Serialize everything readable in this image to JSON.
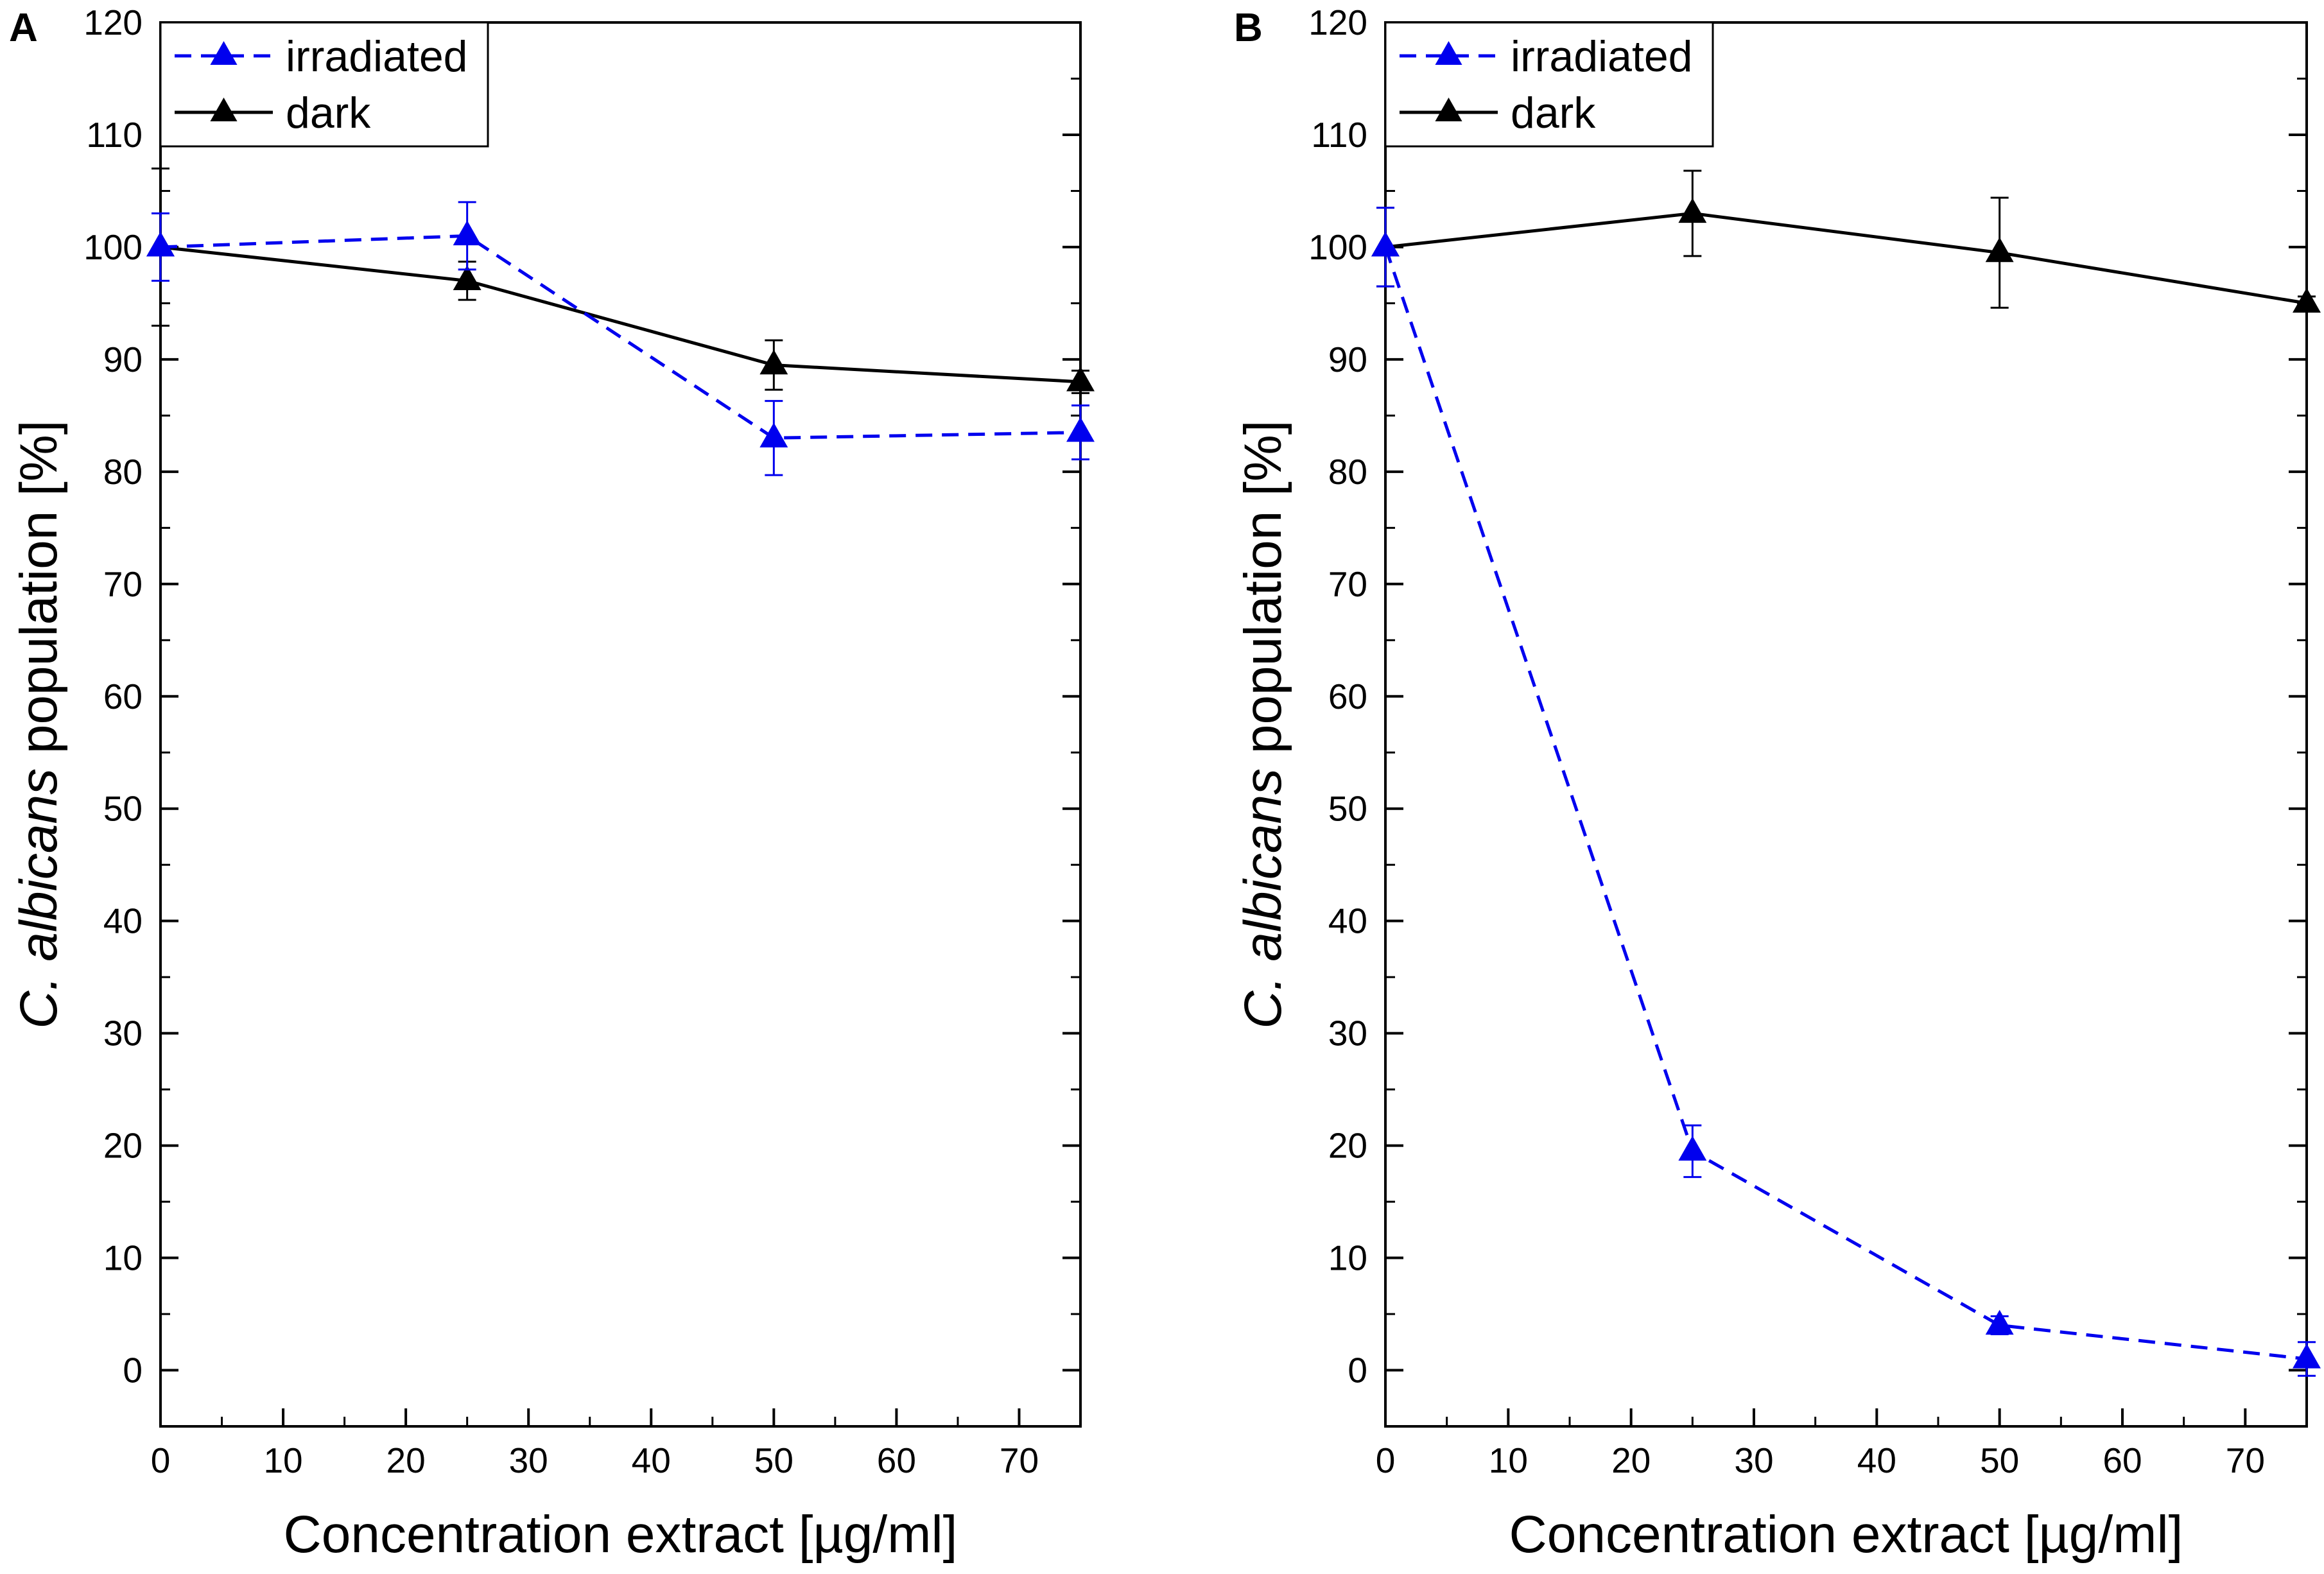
{
  "chart_data": [
    {
      "type": "line",
      "panel_label": "A",
      "xlabel": "Concentration extract [µg/ml]",
      "ylabel_italic": "C. albicans",
      "ylabel_rest": " population [%]",
      "xlim": [
        0,
        75
      ],
      "ylim": [
        -5,
        120
      ],
      "xticks": [
        0,
        10,
        20,
        30,
        40,
        50,
        60,
        70
      ],
      "yticks": [
        0,
        10,
        20,
        30,
        40,
        50,
        60,
        70,
        80,
        90,
        100,
        110,
        120
      ],
      "legend_position": "top-left",
      "series": [
        {
          "name": "irradiated",
          "color": "#0000ee",
          "dashed": true,
          "x": [
            0,
            25,
            50,
            75
          ],
          "y": [
            100,
            101,
            83,
            83.5
          ],
          "err": [
            3,
            3,
            3.3,
            2.4
          ]
        },
        {
          "name": "dark",
          "color": "#000000",
          "dashed": false,
          "x": [
            0,
            25,
            50,
            75
          ],
          "y": [
            100,
            97,
            89.5,
            88
          ],
          "err": [
            7,
            1.7,
            2.2,
            1
          ]
        }
      ]
    },
    {
      "type": "line",
      "panel_label": "B",
      "xlabel": "Concentration extract [µg/ml]",
      "ylabel_italic": "C. albicans",
      "ylabel_rest": " population [%]",
      "xlim": [
        0,
        75
      ],
      "ylim": [
        -5,
        120
      ],
      "xticks": [
        0,
        10,
        20,
        30,
        40,
        50,
        60,
        70
      ],
      "yticks": [
        0,
        10,
        20,
        30,
        40,
        50,
        60,
        70,
        80,
        90,
        100,
        110,
        120
      ],
      "legend_position": "top-left",
      "series": [
        {
          "name": "irradiated",
          "color": "#0000ee",
          "dashed": true,
          "x": [
            0,
            25,
            50,
            75
          ],
          "y": [
            100,
            19.5,
            4,
            1
          ],
          "err": [
            3.5,
            2.3,
            0.8,
            1.5
          ]
        },
        {
          "name": "dark",
          "color": "#000000",
          "dashed": false,
          "x": [
            0,
            25,
            50,
            75
          ],
          "y": [
            100,
            103,
            99.5,
            95
          ],
          "err": [
            3.5,
            3.8,
            4.9,
            0.6
          ]
        }
      ]
    }
  ]
}
